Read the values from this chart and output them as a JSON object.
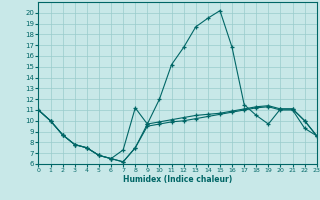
{
  "xlabel": "Humidex (Indice chaleur)",
  "bg_color": "#c8e8e8",
  "grid_color": "#99cccc",
  "line_color": "#006666",
  "xlim": [
    0,
    23
  ],
  "ylim": [
    6,
    21
  ],
  "xticks": [
    0,
    1,
    2,
    3,
    4,
    5,
    6,
    7,
    8,
    9,
    10,
    11,
    12,
    13,
    14,
    15,
    16,
    17,
    18,
    19,
    20,
    21,
    22,
    23
  ],
  "yticks": [
    6,
    7,
    8,
    9,
    10,
    11,
    12,
    13,
    14,
    15,
    16,
    17,
    18,
    19,
    20
  ],
  "s1_x": [
    0,
    1,
    2,
    3,
    4,
    5,
    6,
    7,
    8,
    9,
    10,
    11,
    12,
    13,
    14,
    15,
    16,
    17,
    18,
    19,
    20,
    21,
    22,
    23
  ],
  "s1_y": [
    11,
    10,
    8.7,
    7.8,
    7.5,
    6.8,
    6.5,
    6.2,
    7.5,
    9.7,
    9.9,
    10.1,
    10.3,
    10.5,
    10.6,
    10.7,
    10.9,
    11.1,
    11.3,
    11.4,
    11.1,
    11.1,
    10.0,
    8.6
  ],
  "s2_x": [
    0,
    1,
    2,
    3,
    4,
    5,
    6,
    7,
    8,
    9,
    10,
    11,
    12,
    13,
    14,
    15,
    16,
    17,
    18,
    19,
    20,
    21,
    22,
    23
  ],
  "s2_y": [
    11,
    10,
    8.7,
    7.8,
    7.5,
    6.8,
    6.5,
    7.3,
    11.2,
    9.7,
    12.0,
    15.2,
    16.8,
    18.7,
    19.5,
    20.2,
    16.8,
    11.5,
    10.5,
    9.7,
    11.1,
    11.1,
    10.0,
    8.6
  ],
  "s3_x": [
    0,
    1,
    2,
    3,
    4,
    5,
    6,
    7,
    8,
    9,
    10,
    11,
    12,
    13,
    14,
    15,
    16,
    17,
    18,
    19,
    20,
    21,
    22,
    23
  ],
  "s3_y": [
    11,
    10,
    8.7,
    7.8,
    7.5,
    6.8,
    6.5,
    6.2,
    7.5,
    9.5,
    9.7,
    9.9,
    10.0,
    10.2,
    10.4,
    10.6,
    10.8,
    11.0,
    11.2,
    11.3,
    11.0,
    11.0,
    9.3,
    8.6
  ]
}
